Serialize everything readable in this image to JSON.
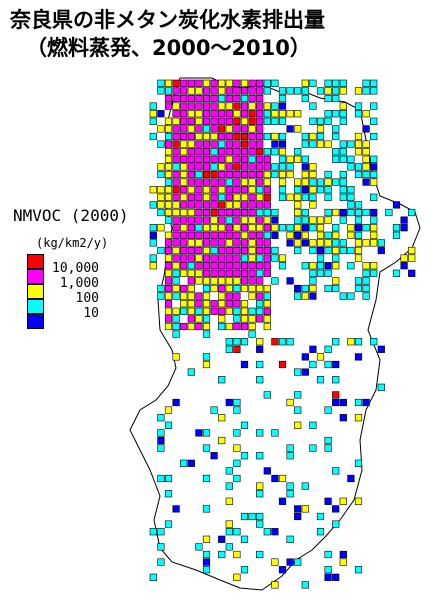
{
  "title_line1": "奈良県の非メタン炭化水素排出量",
  "title_line2": "（燃料蒸発、2000～2010）",
  "legend": {
    "title": "NMVOC (2000)",
    "unit": "(kg/km2/y)",
    "classes": [
      {
        "label": "10,000",
        "color": "#ff0000"
      },
      {
        "label": "1,000",
        "color": "#ff00ff"
      },
      {
        "label": "100",
        "color": "#ffff00"
      },
      {
        "label": "",
        "color": "#00ffff"
      },
      {
        "label": "10",
        "color": "#0000ff"
      }
    ]
  },
  "colors": {
    "red": "#ff0000",
    "magenta": "#ff00ff",
    "yellow": "#ffff00",
    "cyan": "#00ffff",
    "blue": "#0000ff",
    "grid": "#000000",
    "border": "#000000"
  }
}
